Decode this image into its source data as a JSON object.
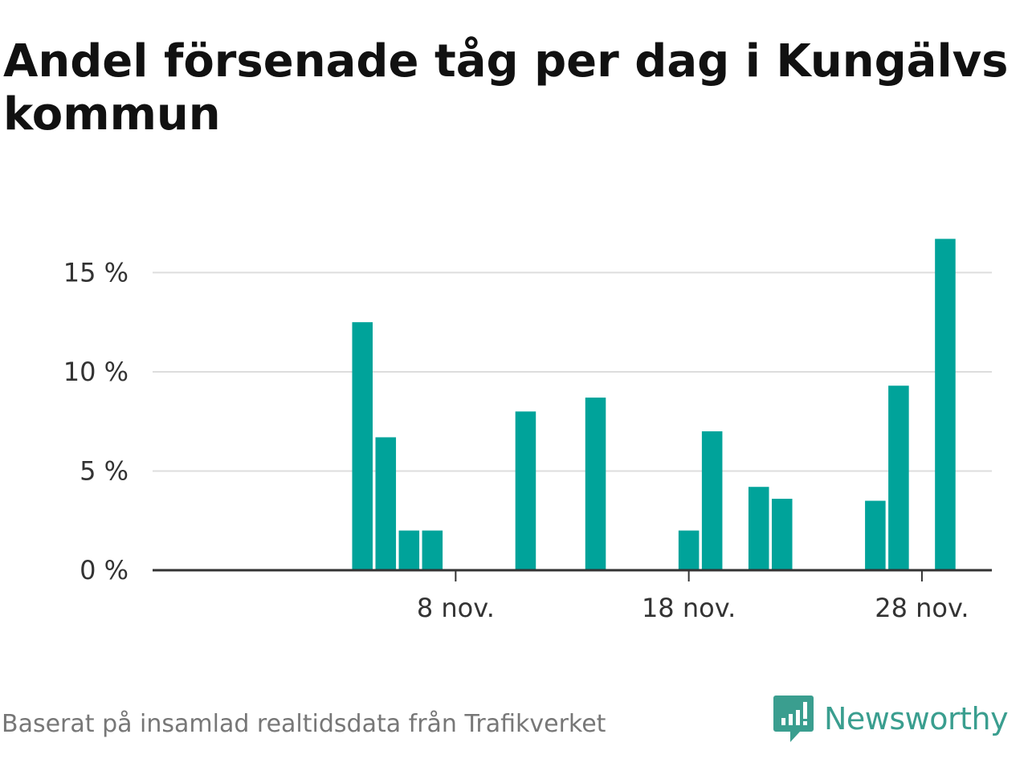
{
  "chart_data": {
    "type": "bar",
    "title": "Andel försenade tåg per dag i Kungälvs kommun",
    "xlabel": "",
    "ylabel": "",
    "x": [
      4,
      5,
      6,
      7,
      11,
      14,
      18,
      19,
      21,
      22,
      26,
      27,
      29
    ],
    "values": [
      12.5,
      6.7,
      2.0,
      2.0,
      8.0,
      8.7,
      2.0,
      7.0,
      4.2,
      3.6,
      3.5,
      9.3,
      16.7
    ],
    "xlim": [
      -5,
      31
    ],
    "ylim": [
      0,
      17
    ],
    "y_ticks": [
      {
        "value": 0,
        "label": "0 %"
      },
      {
        "value": 5,
        "label": "5 %"
      },
      {
        "value": 10,
        "label": "10 %"
      },
      {
        "value": 15,
        "label": "15 %"
      }
    ],
    "x_ticks": [
      {
        "value": 8,
        "label": "8 nov."
      },
      {
        "value": 18,
        "label": "18 nov."
      },
      {
        "value": 28,
        "label": "28 nov."
      }
    ],
    "grid": true,
    "bar_color": "#00a39a",
    "grid_color": "#dddddd",
    "axis_color": "#333333"
  },
  "footer": {
    "source": "Baserat på insamlad realtidsdata från Trafikverket",
    "brand": "Newsworthy",
    "brand_color": "#3a9e8f",
    "logo_icon": "newsworthy-chart-bubble-icon"
  }
}
